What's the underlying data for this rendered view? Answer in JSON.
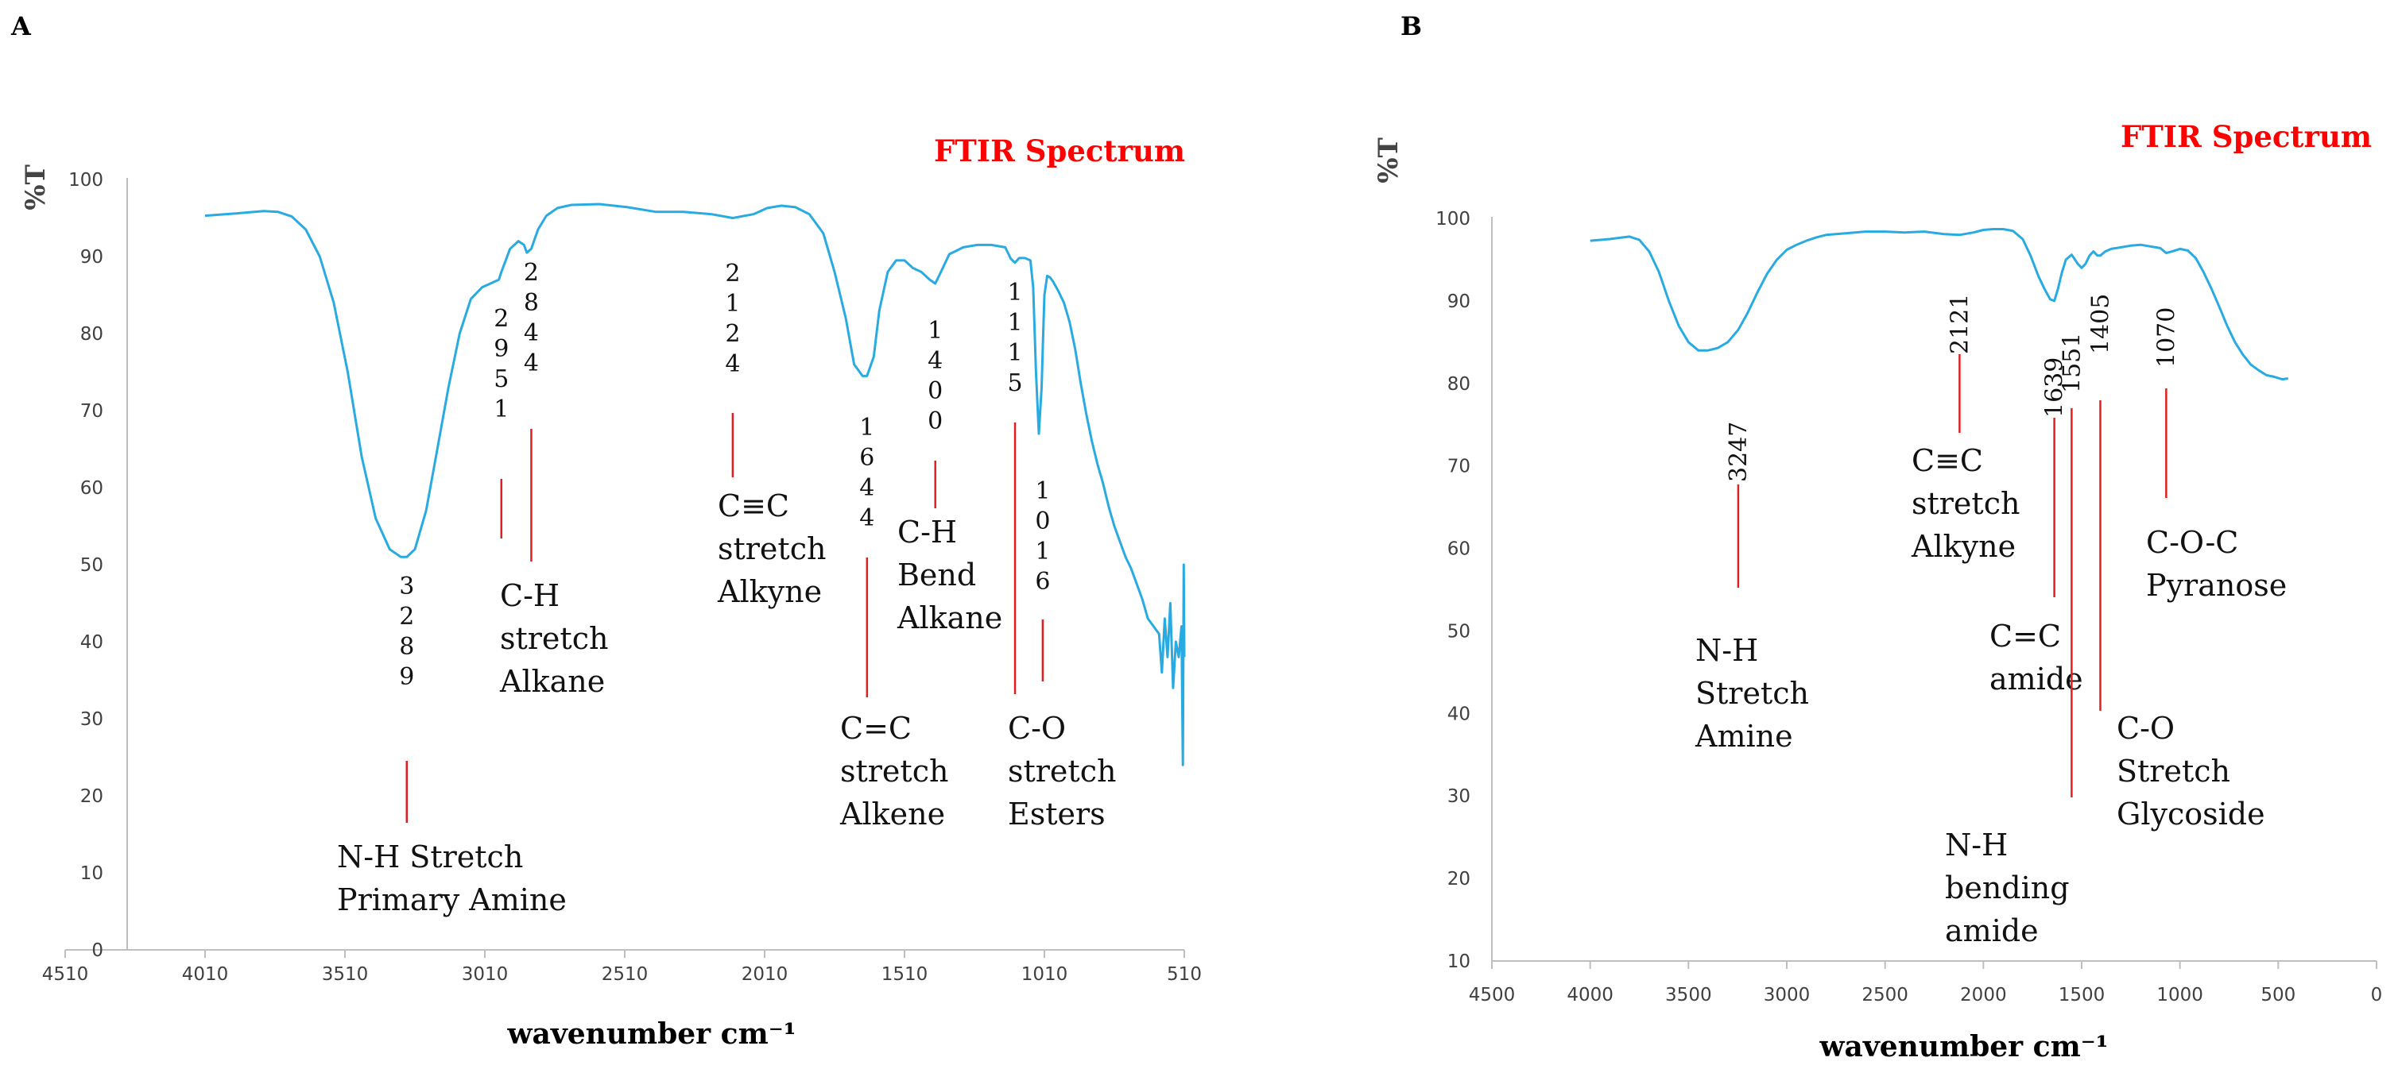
{
  "colors": {
    "line": "#29abe2",
    "marker": "#e02020",
    "title": "#ff0000",
    "axis": "#bfbfbf"
  },
  "chart_data": [
    {
      "panel": "A",
      "type": "line",
      "title": "FTIR Spectrum",
      "xlabel": "wavenumber cm⁻¹",
      "ylabel": "%T",
      "xlim": [
        4510,
        510
      ],
      "ylim": [
        0,
        100
      ],
      "xticks": [
        "4510",
        "4010",
        "3510",
        "3010",
        "2510",
        "2010",
        "1510",
        "1010",
        "510"
      ],
      "yticks": [
        "0",
        "10",
        "20",
        "30",
        "40",
        "50",
        "60",
        "70",
        "80",
        "90",
        "100"
      ],
      "series": [
        {
          "name": "FTIR A",
          "x": [
            4010,
            3900,
            3800,
            3750,
            3700,
            3650,
            3600,
            3550,
            3500,
            3450,
            3400,
            3350,
            3310,
            3289,
            3260,
            3220,
            3180,
            3140,
            3100,
            3060,
            3020,
            2990,
            2960,
            2951,
            2920,
            2890,
            2870,
            2860,
            2844,
            2820,
            2790,
            2750,
            2700,
            2600,
            2500,
            2400,
            2300,
            2200,
            2124,
            2050,
            2000,
            1950,
            1900,
            1850,
            1800,
            1760,
            1720,
            1690,
            1660,
            1644,
            1620,
            1600,
            1570,
            1540,
            1510,
            1480,
            1450,
            1420,
            1400,
            1380,
            1350,
            1300,
            1250,
            1200,
            1150,
            1130,
            1115,
            1100,
            1080,
            1060,
            1050,
            1040,
            1030,
            1020,
            1016,
            1010,
            1000,
            990,
            980,
            960,
            940,
            920,
            900,
            880,
            860,
            840,
            820,
            800,
            780,
            760,
            740,
            720,
            700,
            680,
            660,
            640,
            620,
            600,
            590,
            580,
            570,
            560,
            550,
            540,
            530,
            520,
            515,
            512,
            510
          ],
          "y": [
            95.3,
            95.6,
            95.9,
            95.8,
            95.2,
            93.5,
            90,
            84,
            75,
            64,
            56,
            52,
            51,
            51,
            52,
            57,
            65,
            73,
            80,
            84.5,
            86,
            86.5,
            87,
            88,
            91,
            92,
            91.5,
            90.5,
            91,
            93.5,
            95.3,
            96.3,
            96.7,
            96.8,
            96.4,
            95.8,
            95.8,
            95.5,
            95,
            95.5,
            96.3,
            96.6,
            96.4,
            95.5,
            93,
            88,
            82,
            76,
            74.5,
            74.5,
            77,
            83,
            88,
            89.5,
            89.5,
            88.5,
            88,
            87,
            86.5,
            88,
            90.3,
            91.2,
            91.5,
            91.5,
            91.2,
            89.7,
            89.2,
            89.8,
            89.8,
            89.5,
            86,
            75,
            67,
            73,
            78,
            85,
            87.5,
            87.3,
            86.8,
            85.5,
            84,
            81.5,
            78,
            73.5,
            69.5,
            66,
            63,
            60.5,
            57.5,
            55,
            53,
            51,
            49.5,
            47.5,
            45.5,
            43,
            42,
            41,
            36,
            43,
            38,
            45,
            34,
            40,
            38,
            42,
            24,
            50,
            38
          ]
        }
      ],
      "annotations": [
        {
          "id": "3289",
          "x": 3289,
          "digits": [
            "3",
            "2",
            "8",
            "9"
          ],
          "label": [
            "N-H Stretch",
            "Primary Amine"
          ]
        },
        {
          "id": "2951",
          "x": 2951,
          "digits": [
            "2",
            "9",
            "5",
            "1"
          ],
          "label": [
            "C-H",
            "stretch",
            "Alkane"
          ]
        },
        {
          "id": "2844",
          "x": 2844,
          "digits": [
            "2",
            "8",
            "4",
            "4"
          ]
        },
        {
          "id": "2124",
          "x": 2124,
          "digits": [
            "2",
            "1",
            "2",
            "4"
          ],
          "label": [
            "C≡C",
            "stretch",
            "Alkyne"
          ]
        },
        {
          "id": "1644",
          "x": 1644,
          "digits": [
            "1",
            "6",
            "4",
            "4"
          ],
          "label": [
            "C=C",
            "stretch",
            "Alkene"
          ]
        },
        {
          "id": "1400",
          "x": 1400,
          "digits": [
            "1",
            "4",
            "0",
            "0"
          ],
          "label": [
            "C-H",
            "Bend",
            "Alkane"
          ]
        },
        {
          "id": "1115",
          "x": 1115,
          "digits": [
            "1",
            "1",
            "1",
            "5"
          ],
          "label": [
            "C-O",
            "stretch",
            "Esters"
          ]
        },
        {
          "id": "1016",
          "x": 1016,
          "digits": [
            "1",
            "0",
            "1",
            "6"
          ]
        }
      ]
    },
    {
      "panel": "B",
      "type": "line",
      "title": "FTIR Spectrum",
      "xlabel": "wavenumber cm⁻¹",
      "ylabel": "%T",
      "xlim": [
        4500,
        0
      ],
      "ylim": [
        10,
        100
      ],
      "xticks": [
        "4500",
        "4000",
        "3500",
        "3000",
        "2500",
        "2000",
        "1500",
        "1000",
        "500",
        "0"
      ],
      "yticks": [
        "10",
        "20",
        "30",
        "40",
        "50",
        "60",
        "70",
        "80",
        "90",
        "100"
      ],
      "series": [
        {
          "name": "FTIR B",
          "x": [
            4000,
            3900,
            3800,
            3750,
            3700,
            3650,
            3600,
            3550,
            3500,
            3450,
            3400,
            3350,
            3300,
            3247,
            3200,
            3150,
            3100,
            3050,
            3000,
            2950,
            2900,
            2850,
            2800,
            2700,
            2600,
            2500,
            2400,
            2300,
            2200,
            2121,
            2050,
            2000,
            1950,
            1900,
            1850,
            1800,
            1760,
            1720,
            1690,
            1660,
            1639,
            1620,
            1600,
            1580,
            1551,
            1520,
            1500,
            1480,
            1460,
            1440,
            1420,
            1405,
            1380,
            1350,
            1300,
            1250,
            1200,
            1150,
            1100,
            1070,
            1040,
            1000,
            960,
            920,
            880,
            840,
            800,
            760,
            720,
            680,
            640,
            600,
            560,
            520,
            480,
            450
          ],
          "y": [
            97.3,
            97.5,
            97.8,
            97.4,
            96,
            93.5,
            90,
            87,
            85,
            84,
            84,
            84.3,
            85,
            86.5,
            88.5,
            91,
            93.3,
            95,
            96.2,
            96.8,
            97.3,
            97.7,
            98,
            98.2,
            98.4,
            98.4,
            98.3,
            98.4,
            98.1,
            98,
            98.3,
            98.6,
            98.7,
            98.7,
            98.5,
            97.5,
            95.5,
            93,
            91.5,
            90.2,
            90,
            91.5,
            93.5,
            95,
            95.6,
            94.5,
            94,
            94.5,
            95.5,
            96,
            95.5,
            95.5,
            96,
            96.3,
            96.5,
            96.7,
            96.8,
            96.6,
            96.4,
            95.8,
            96,
            96.3,
            96.1,
            95.2,
            93.5,
            91.5,
            89.3,
            87,
            85,
            83.5,
            82.3,
            81.6,
            81,
            80.8,
            80.5,
            80.6
          ]
        }
      ],
      "annotations": [
        {
          "id": "3247",
          "x": 3247,
          "text": "3247",
          "label": [
            "N-H",
            "Stretch",
            "Amine"
          ]
        },
        {
          "id": "2121",
          "x": 2121,
          "text": "2121",
          "label": [
            "C≡C",
            "stretch",
            "Alkyne"
          ]
        },
        {
          "id": "1639",
          "x": 1639,
          "text": "1639",
          "label": [
            "C=C",
            "amide"
          ]
        },
        {
          "id": "1551",
          "x": 1551,
          "text": "1551",
          "label": [
            "N-H",
            "bending",
            "amide"
          ]
        },
        {
          "id": "1405",
          "x": 1405,
          "text": "1405",
          "label": [
            "C-O",
            "Stretch",
            "Glycoside"
          ]
        },
        {
          "id": "1070",
          "x": 1070,
          "text": "1070",
          "label": [
            "C-O-C",
            "Pyranose"
          ]
        }
      ]
    }
  ]
}
